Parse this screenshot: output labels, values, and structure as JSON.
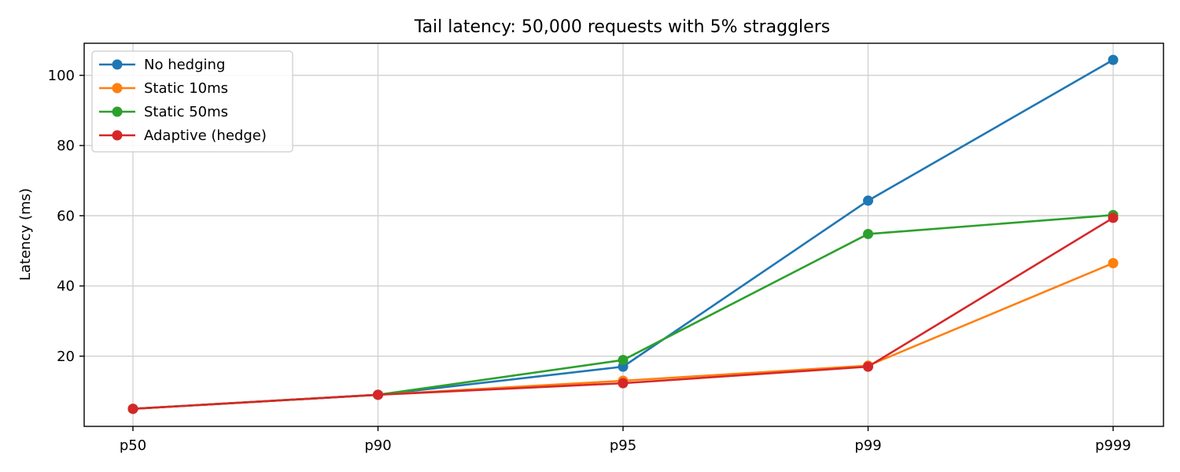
{
  "chart_data": {
    "type": "line",
    "title": "Tail latency: 50,000 requests with 5% stragglers",
    "xlabel": "",
    "ylabel": "Latency (ms)",
    "categories": [
      "p50",
      "p90",
      "p95",
      "p99",
      "p999"
    ],
    "ylim": [
      0,
      109
    ],
    "yticks": [
      20,
      40,
      60,
      80,
      100
    ],
    "grid": true,
    "legend_position": "top-left",
    "series": [
      {
        "name": "No hedging",
        "color": "#1f77b4",
        "values": [
          5.0,
          9.0,
          17.0,
          64.3,
          104.4
        ]
      },
      {
        "name": "Static 10ms",
        "color": "#ff7f0e",
        "values": [
          5.0,
          9.0,
          13.0,
          17.3,
          46.5
        ]
      },
      {
        "name": "Static 50ms",
        "color": "#2ca02c",
        "values": [
          5.0,
          9.0,
          18.9,
          54.8,
          60.2
        ]
      },
      {
        "name": "Adaptive (hedge)",
        "color": "#d62728",
        "values": [
          5.0,
          9.0,
          12.3,
          17.0,
          59.4
        ]
      }
    ]
  }
}
